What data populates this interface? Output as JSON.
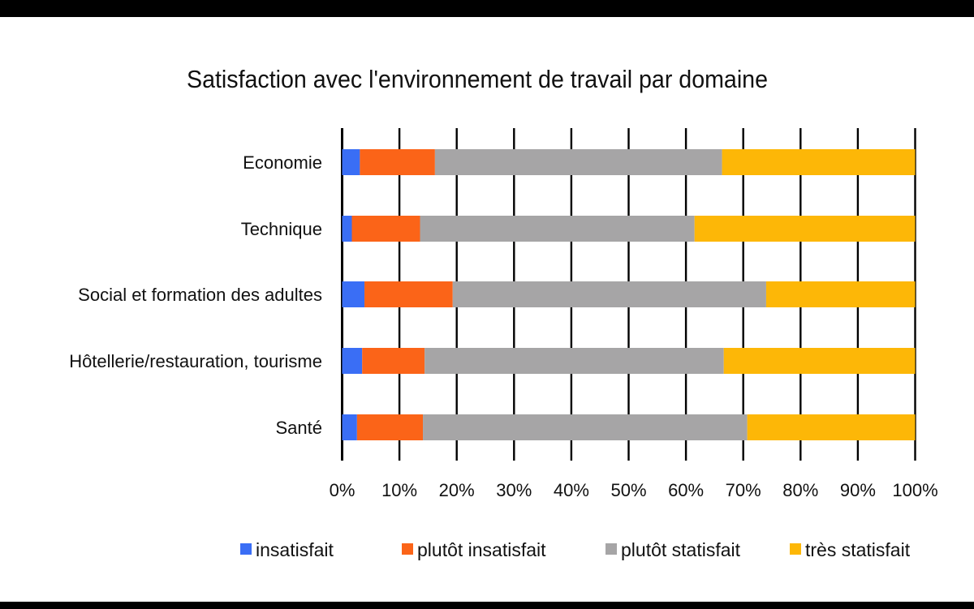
{
  "chart_data": {
    "type": "bar",
    "orientation": "horizontal",
    "stacked": "percent",
    "title": "Satisfaction avec l'environnement de travail par domaine",
    "categories": [
      "Economie",
      "Technique",
      "Social et formation des adultes",
      "Hôtellerie/restauration, tourisme",
      "Santé"
    ],
    "series": [
      {
        "name": "insatisfait",
        "color": "#3a6ef5",
        "values": [
          3.1,
          1.7,
          3.9,
          3.5,
          2.6
        ]
      },
      {
        "name": "plutôt insatisfait",
        "color": "#fb6418",
        "values": [
          13.1,
          11.9,
          15.4,
          10.9,
          11.5
        ]
      },
      {
        "name": "plutôt statisfait",
        "color": "#a6a5a6",
        "values": [
          50.1,
          47.9,
          54.7,
          52.2,
          56.6
        ]
      },
      {
        "name": "très statisfait",
        "color": "#fdb707",
        "values": [
          33.7,
          38.5,
          26.0,
          33.4,
          29.3
        ]
      }
    ],
    "xlim": [
      0,
      100
    ],
    "x_ticks": [
      "0%",
      "10%",
      "20%",
      "30%",
      "40%",
      "50%",
      "60%",
      "70%",
      "80%",
      "90%",
      "100%"
    ],
    "grid": "vertical",
    "legend": "bottom"
  }
}
